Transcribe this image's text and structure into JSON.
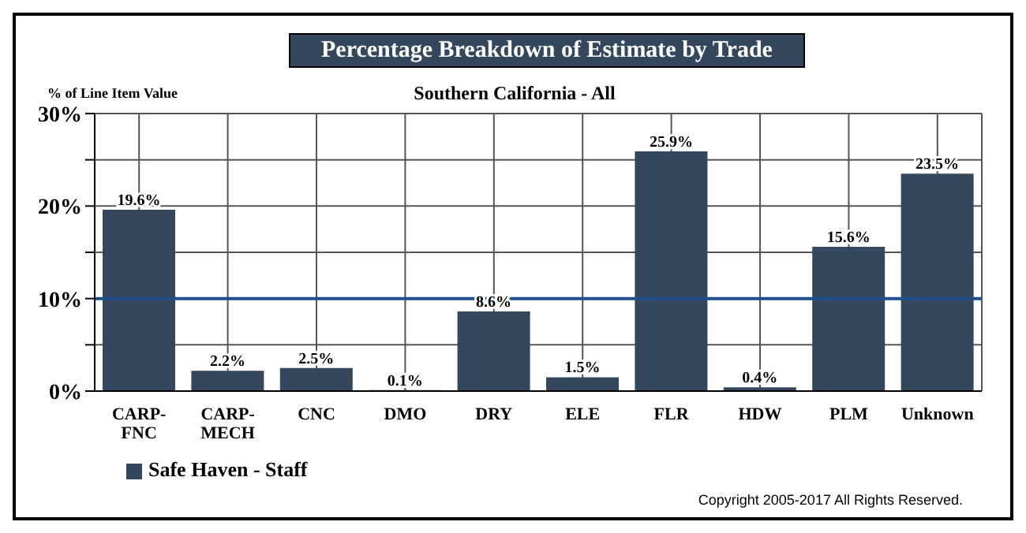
{
  "chart_data": {
    "type": "bar",
    "title": "Percentage Breakdown of Estimate by Trade",
    "subtitle": "Southern California - All",
    "ylabel": "% of Line Item Value",
    "categories": [
      "CARP-FNC",
      "CARP-MECH",
      "CNC",
      "DMO",
      "DRY",
      "ELE",
      "FLR",
      "HDW",
      "PLM",
      "Unknown"
    ],
    "series": [
      {
        "name": "Safe Haven - Staff",
        "color": "#34475d",
        "values": [
          19.6,
          2.2,
          2.5,
          0.1,
          8.6,
          1.5,
          25.9,
          0.4,
          15.6,
          23.5
        ],
        "value_labels": [
          "19.6%",
          "2.2%",
          "2.5%",
          "0.1%",
          "8.6%",
          "1.5%",
          "25.9%",
          "0.4%",
          "15.6%",
          "23.5%"
        ]
      }
    ],
    "ylim": [
      0,
      30
    ],
    "yticks": [
      {
        "value": 0,
        "label": "0%"
      },
      {
        "value": 5,
        "label": null
      },
      {
        "value": 10,
        "label": "10%"
      },
      {
        "value": 15,
        "label": null
      },
      {
        "value": 20,
        "label": "20%"
      },
      {
        "value": 25,
        "label": null
      },
      {
        "value": 30,
        "label": "30%"
      }
    ],
    "ref_lines": [
      {
        "axis": "y",
        "value": 10,
        "color": "#1f4e8c"
      }
    ],
    "grid": true,
    "legend": "bottom left",
    "annotations": [
      "Copyright 2005-2017 All Rights Reserved."
    ]
  }
}
